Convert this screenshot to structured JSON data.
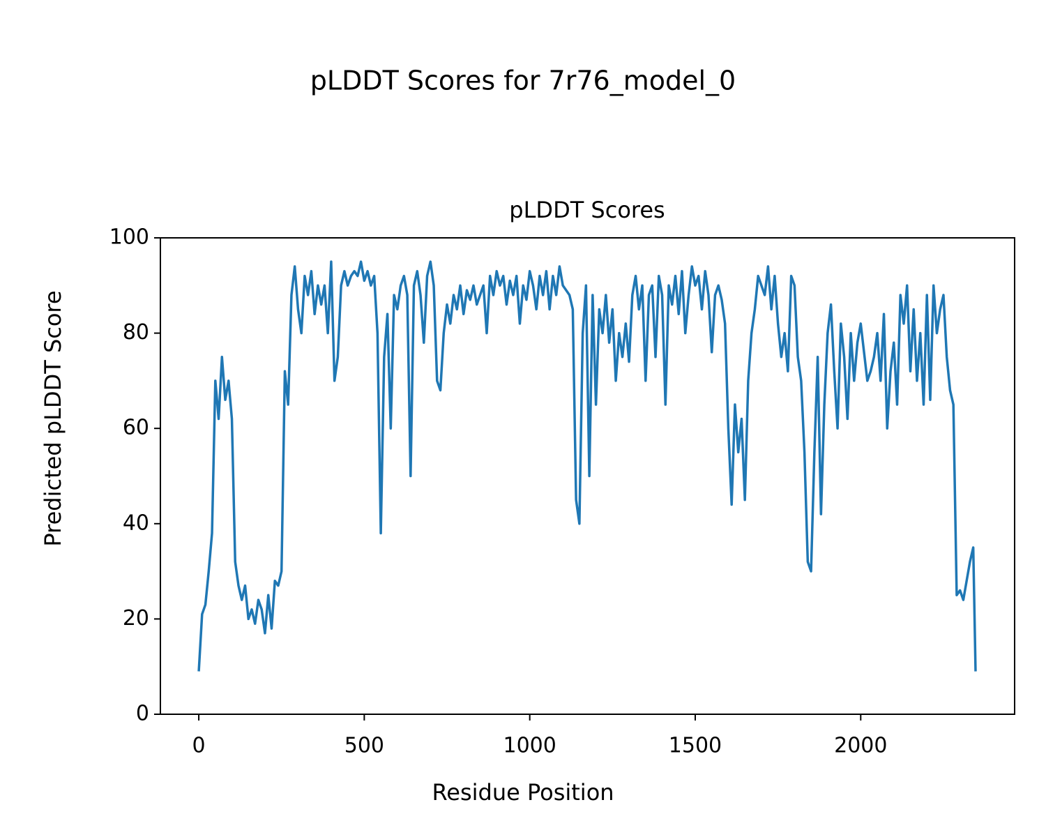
{
  "chart_data": {
    "type": "line",
    "title": "pLDDT Scores for 7r76_model_0",
    "subtitle": "pLDDT Scores",
    "x_label": "Residue Position",
    "y_label": "Predicted pLDDT Score",
    "xlim": [
      -116,
      2465
    ],
    "ylim": [
      0,
      100
    ],
    "xticks": [
      0,
      500,
      1000,
      1500,
      2000
    ],
    "yticks": [
      0,
      20,
      40,
      60,
      80,
      100
    ],
    "grid": false,
    "x": [
      0,
      10,
      20,
      30,
      40,
      50,
      60,
      70,
      80,
      90,
      100,
      110,
      120,
      130,
      140,
      150,
      160,
      170,
      180,
      190,
      200,
      210,
      220,
      230,
      240,
      250,
      260,
      270,
      280,
      290,
      300,
      310,
      320,
      330,
      340,
      350,
      360,
      370,
      380,
      390,
      400,
      410,
      420,
      430,
      440,
      450,
      460,
      470,
      480,
      490,
      500,
      510,
      520,
      530,
      540,
      550,
      560,
      570,
      580,
      590,
      600,
      610,
      620,
      630,
      640,
      650,
      660,
      670,
      680,
      690,
      700,
      710,
      720,
      730,
      740,
      750,
      760,
      770,
      780,
      790,
      800,
      810,
      820,
      830,
      840,
      850,
      860,
      870,
      880,
      890,
      900,
      910,
      920,
      930,
      940,
      950,
      960,
      970,
      980,
      990,
      1000,
      1010,
      1020,
      1030,
      1040,
      1050,
      1060,
      1070,
      1080,
      1090,
      1100,
      1110,
      1120,
      1130,
      1140,
      1150,
      1160,
      1170,
      1180,
      1190,
      1200,
      1210,
      1220,
      1230,
      1240,
      1250,
      1260,
      1270,
      1280,
      1290,
      1300,
      1310,
      1320,
      1330,
      1340,
      1350,
      1360,
      1370,
      1380,
      1390,
      1400,
      1410,
      1420,
      1430,
      1440,
      1450,
      1460,
      1470,
      1480,
      1490,
      1500,
      1510,
      1520,
      1530,
      1540,
      1550,
      1560,
      1570,
      1580,
      1590,
      1600,
      1610,
      1620,
      1630,
      1640,
      1650,
      1660,
      1670,
      1680,
      1690,
      1700,
      1710,
      1720,
      1730,
      1740,
      1750,
      1760,
      1770,
      1780,
      1790,
      1800,
      1810,
      1820,
      1830,
      1840,
      1850,
      1860,
      1870,
      1880,
      1890,
      1900,
      1910,
      1920,
      1930,
      1940,
      1950,
      1960,
      1970,
      1980,
      1990,
      2000,
      2010,
      2020,
      2030,
      2040,
      2050,
      2060,
      2070,
      2080,
      2090,
      2100,
      2110,
      2120,
      2130,
      2140,
      2150,
      2160,
      2170,
      2180,
      2190,
      2200,
      2210,
      2220,
      2230,
      2240,
      2250,
      2260,
      2270,
      2280,
      2290,
      2300,
      2310,
      2320,
      2330,
      2340,
      2347
    ],
    "series": [
      {
        "color": "#1f77b4",
        "values": [
          9,
          21,
          23,
          30,
          38,
          70,
          62,
          75,
          66,
          70,
          62,
          32,
          27,
          24,
          27,
          20,
          22,
          19,
          24,
          22,
          17,
          25,
          18,
          28,
          27,
          30,
          72,
          65,
          88,
          94,
          85,
          80,
          92,
          88,
          93,
          84,
          90,
          86,
          90,
          80,
          95,
          70,
          75,
          90,
          93,
          90,
          92,
          93,
          92,
          95,
          91,
          93,
          90,
          92,
          80,
          38,
          75,
          84,
          60,
          88,
          85,
          90,
          92,
          88,
          50,
          90,
          93,
          88,
          78,
          92,
          95,
          90,
          70,
          68,
          80,
          86,
          82,
          88,
          85,
          90,
          84,
          89,
          87,
          90,
          86,
          88,
          90,
          80,
          92,
          88,
          93,
          90,
          92,
          86,
          91,
          88,
          92,
          82,
          90,
          87,
          93,
          90,
          85,
          92,
          88,
          93,
          85,
          92,
          88,
          94,
          90,
          89,
          88,
          85,
          45,
          40,
          80,
          90,
          50,
          88,
          65,
          85,
          80,
          88,
          78,
          85,
          70,
          80,
          75,
          82,
          74,
          88,
          92,
          85,
          90,
          70,
          88,
          90,
          75,
          92,
          88,
          65,
          90,
          86,
          92,
          84,
          93,
          80,
          88,
          94,
          90,
          92,
          85,
          93,
          88,
          76,
          88,
          90,
          87,
          82,
          60,
          44,
          65,
          55,
          62,
          45,
          70,
          80,
          85,
          92,
          90,
          88,
          94,
          85,
          92,
          82,
          75,
          80,
          72,
          92,
          90,
          75,
          70,
          55,
          32,
          30,
          55,
          75,
          42,
          65,
          80,
          86,
          72,
          60,
          82,
          75,
          62,
          80,
          70,
          78,
          82,
          76,
          70,
          72,
          75,
          80,
          70,
          84,
          60,
          72,
          78,
          65,
          88,
          82,
          90,
          72,
          85,
          70,
          80,
          65,
          88,
          66,
          90,
          80,
          85,
          88,
          75,
          68,
          65,
          25,
          26,
          24,
          28,
          32,
          35,
          9
        ]
      }
    ]
  }
}
